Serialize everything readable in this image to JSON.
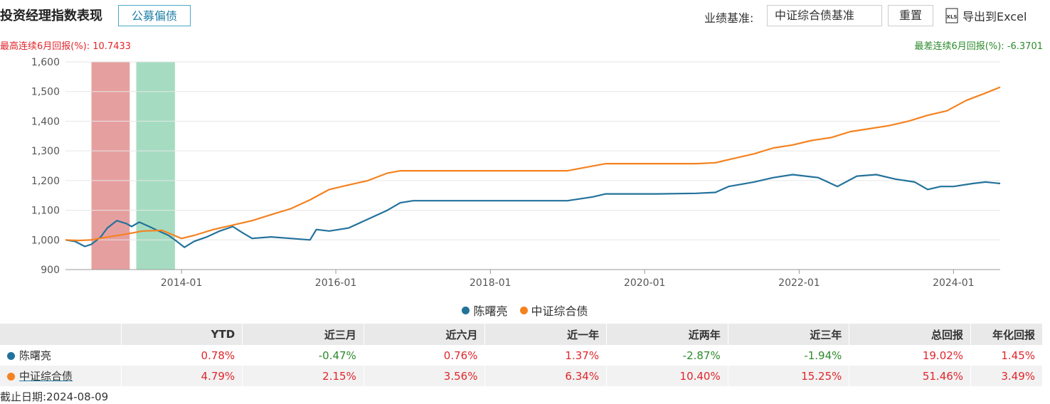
{
  "header": {
    "title": "投资经理指数表现",
    "tag": "公募偏债",
    "benchmark_label": "业绩基准:",
    "benchmark_value": "中证综合债基准",
    "reset_label": "重置",
    "export_label": "导出到Excel",
    "export_icon": "xls-icon"
  },
  "stats": {
    "best_6m": "最高连续6月回报(%):  10.7433",
    "worst_6m": "最差连续6月回报(%):  -6.3701"
  },
  "colors": {
    "manager": "#23729c",
    "benchmark": "#f58220",
    "best_band": "#d96b6b",
    "worst_band": "#74c9a0",
    "positive": "#e0262c",
    "negative": "#2d8a2d"
  },
  "chart_data": {
    "type": "line",
    "x_range": [
      "2012-07-01",
      "2024-08-09"
    ],
    "ylim": [
      900,
      1600
    ],
    "y_ticks": [
      "900",
      "1,000",
      "1,100",
      "1,200",
      "1,300",
      "1,400",
      "1,500",
      "1,600"
    ],
    "x_ticks": [
      "2014-01",
      "2016-01",
      "2018-01",
      "2020-01",
      "2022-01",
      "2024-01"
    ],
    "grid": true,
    "legend_position": "bottom",
    "bands": [
      {
        "kind": "best",
        "start": "2012-11-01",
        "end": "2013-05-01"
      },
      {
        "kind": "worst",
        "start": "2013-06-01",
        "end": "2013-12-01"
      }
    ],
    "series": [
      {
        "name": "陈曙亮",
        "points": [
          [
            "2012-07-01",
            1000
          ],
          [
            "2012-08-15",
            995
          ],
          [
            "2012-10-01",
            978
          ],
          [
            "2012-11-01",
            985
          ],
          [
            "2012-12-15",
            1010
          ],
          [
            "2013-01-15",
            1040
          ],
          [
            "2013-03-01",
            1065
          ],
          [
            "2013-04-15",
            1055
          ],
          [
            "2013-05-10",
            1045
          ],
          [
            "2013-06-15",
            1060
          ],
          [
            "2013-08-01",
            1045
          ],
          [
            "2013-09-15",
            1030
          ],
          [
            "2013-11-01",
            1015
          ],
          [
            "2013-12-10",
            995
          ],
          [
            "2014-01-15",
            975
          ],
          [
            "2014-03-01",
            995
          ],
          [
            "2014-05-01",
            1010
          ],
          [
            "2014-07-01",
            1030
          ],
          [
            "2014-09-01",
            1045
          ],
          [
            "2014-10-15",
            1025
          ],
          [
            "2014-12-01",
            1005
          ],
          [
            "2015-03-01",
            1010
          ],
          [
            "2015-06-01",
            1005
          ],
          [
            "2015-09-01",
            1000
          ],
          [
            "2015-10-01",
            1035
          ],
          [
            "2015-12-01",
            1030
          ],
          [
            "2016-03-01",
            1040
          ],
          [
            "2016-06-01",
            1070
          ],
          [
            "2016-09-01",
            1100
          ],
          [
            "2016-11-01",
            1125
          ],
          [
            "2017-01-01",
            1132
          ],
          [
            "2018-03-01",
            1132
          ],
          [
            "2019-01-01",
            1132
          ],
          [
            "2019-05-01",
            1145
          ],
          [
            "2019-07-01",
            1155
          ],
          [
            "2020-03-01",
            1155
          ],
          [
            "2020-09-01",
            1157
          ],
          [
            "2020-12-01",
            1160
          ],
          [
            "2021-02-01",
            1180
          ],
          [
            "2021-06-01",
            1195
          ],
          [
            "2021-09-01",
            1210
          ],
          [
            "2021-12-01",
            1220
          ],
          [
            "2022-04-01",
            1210
          ],
          [
            "2022-07-01",
            1180
          ],
          [
            "2022-10-01",
            1215
          ],
          [
            "2023-01-01",
            1220
          ],
          [
            "2023-04-01",
            1205
          ],
          [
            "2023-07-01",
            1195
          ],
          [
            "2023-09-01",
            1170
          ],
          [
            "2023-11-01",
            1180
          ],
          [
            "2024-01-01",
            1180
          ],
          [
            "2024-04-01",
            1190
          ],
          [
            "2024-06-01",
            1195
          ],
          [
            "2024-08-09",
            1190
          ]
        ]
      },
      {
        "name": "中证综合债",
        "points": [
          [
            "2012-07-01",
            1000
          ],
          [
            "2012-09-01",
            998
          ],
          [
            "2012-11-01",
            1000
          ],
          [
            "2013-01-01",
            1008
          ],
          [
            "2013-04-01",
            1018
          ],
          [
            "2013-07-01",
            1030
          ],
          [
            "2013-10-01",
            1032
          ],
          [
            "2014-01-01",
            1005
          ],
          [
            "2014-03-01",
            1015
          ],
          [
            "2014-06-01",
            1035
          ],
          [
            "2014-09-01",
            1050
          ],
          [
            "2014-12-01",
            1065
          ],
          [
            "2015-03-01",
            1085
          ],
          [
            "2015-06-01",
            1105
          ],
          [
            "2015-09-01",
            1135
          ],
          [
            "2015-12-01",
            1170
          ],
          [
            "2016-03-01",
            1185
          ],
          [
            "2016-06-01",
            1200
          ],
          [
            "2016-09-01",
            1225
          ],
          [
            "2016-11-01",
            1233
          ],
          [
            "2018-01-01",
            1233
          ],
          [
            "2019-01-01",
            1233
          ],
          [
            "2019-04-01",
            1245
          ],
          [
            "2019-07-01",
            1257
          ],
          [
            "2020-09-01",
            1257
          ],
          [
            "2020-12-01",
            1260
          ],
          [
            "2021-03-01",
            1275
          ],
          [
            "2021-06-01",
            1290
          ],
          [
            "2021-09-01",
            1310
          ],
          [
            "2021-12-01",
            1320
          ],
          [
            "2022-03-01",
            1335
          ],
          [
            "2022-06-01",
            1345
          ],
          [
            "2022-09-01",
            1365
          ],
          [
            "2022-12-01",
            1375
          ],
          [
            "2023-03-01",
            1385
          ],
          [
            "2023-06-01",
            1400
          ],
          [
            "2023-09-01",
            1420
          ],
          [
            "2023-12-01",
            1435
          ],
          [
            "2024-03-01",
            1470
          ],
          [
            "2024-06-01",
            1495
          ],
          [
            "2024-08-09",
            1515
          ]
        ]
      }
    ]
  },
  "legend": [
    "陈曙亮",
    "中证综合债"
  ],
  "table": {
    "columns": [
      "YTD",
      "近三月",
      "近六月",
      "近一年",
      "近两年",
      "近三年",
      "总回报",
      "年化回报"
    ],
    "rows": [
      {
        "name": "陈曙亮",
        "values": [
          "0.78%",
          "-0.47%",
          "0.76%",
          "1.37%",
          "-2.87%",
          "-1.94%",
          "19.02%",
          "1.45%"
        ]
      },
      {
        "name": "中证综合债",
        "values": [
          "4.79%",
          "2.15%",
          "3.56%",
          "6.34%",
          "10.40%",
          "15.25%",
          "51.46%",
          "3.49%"
        ]
      }
    ]
  },
  "as_of": "截止日期:2024-08-09"
}
